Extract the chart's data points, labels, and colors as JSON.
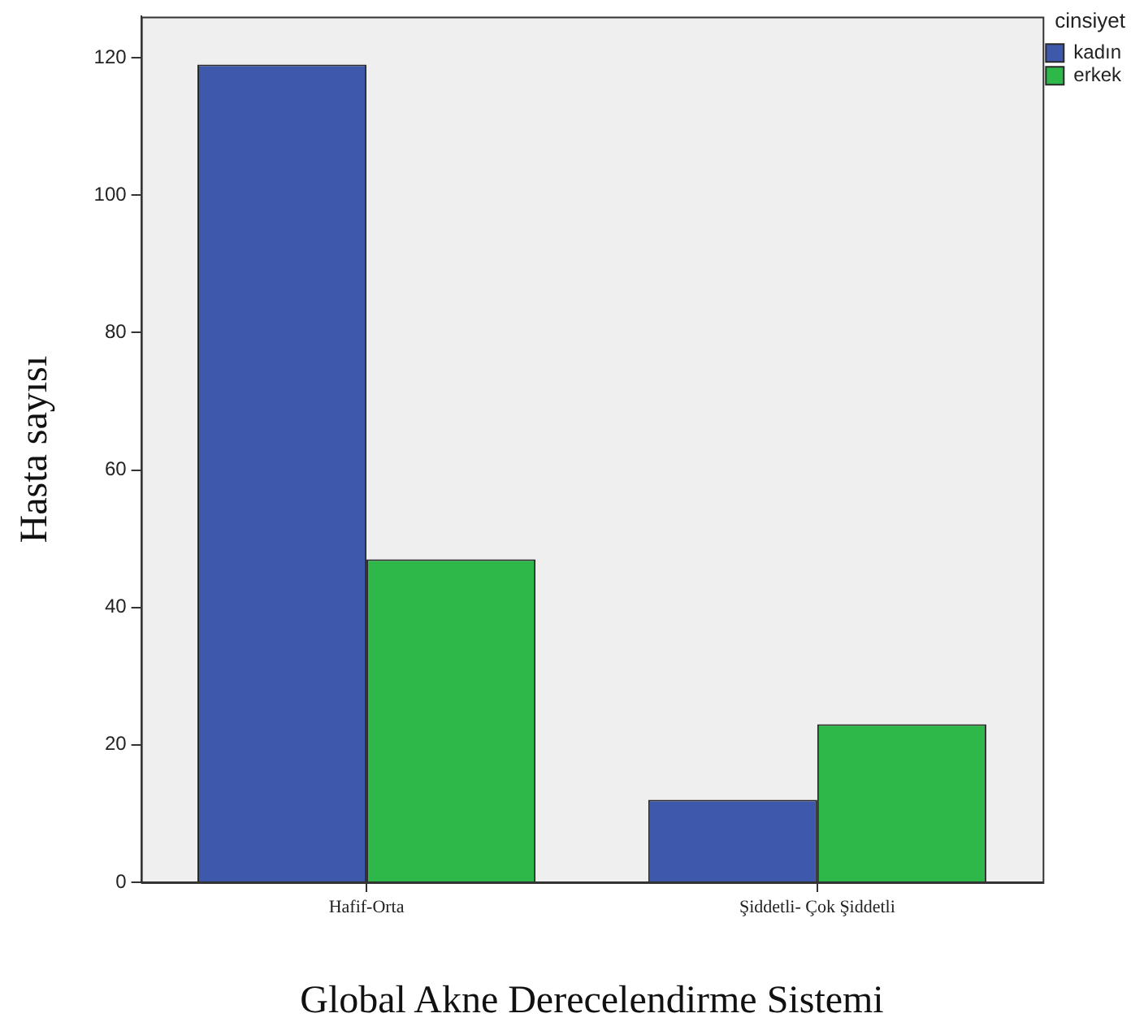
{
  "chart_data": {
    "type": "bar",
    "categories": [
      "Hafif-Orta",
      "Şiddetli- Çok Şiddetli"
    ],
    "series": [
      {
        "name": "kadın",
        "color": "#3e58ac",
        "values": [
          119,
          12
        ]
      },
      {
        "name": "erkek",
        "color": "#2fb84a",
        "values": [
          47,
          23
        ]
      }
    ],
    "xlabel": "Global Akne Derecelendirme Sistemi",
    "ylabel": "Hasta sayısı",
    "legend_title": "cinsiyet",
    "legend": "right",
    "ylim": [
      0,
      126
    ],
    "yticks": [
      0,
      20,
      40,
      60,
      80,
      100,
      120
    ],
    "grid": false
  }
}
